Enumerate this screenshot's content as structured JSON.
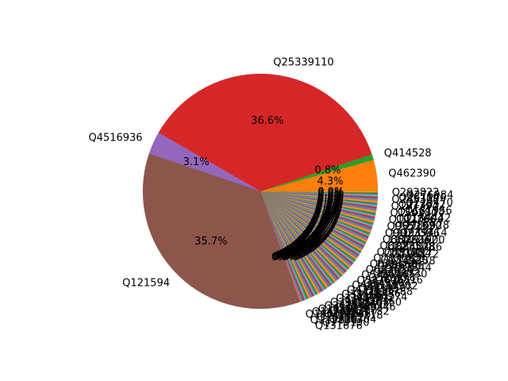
{
  "chart_data": {
    "type": "pie",
    "title": "",
    "major_slices": [
      {
        "label": "Q25339110",
        "value": 36.6,
        "pct_label": "36.6%",
        "color": "#d62728"
      },
      {
        "label": "Q4516936",
        "value": 3.1,
        "pct_label": "3.1%",
        "color": "#9467bd"
      },
      {
        "label": "Q121594",
        "value": 35.7,
        "pct_label": "35.7%",
        "color": "#8c564b"
      },
      {
        "label": "Q414528",
        "value": 0.8,
        "pct_label": "0.8%",
        "color": "#2ca02c"
      },
      {
        "label": "Q462390",
        "value": 4.3,
        "pct_label": "4.3%",
        "color": "#ff7f0e"
      }
    ],
    "minor_slices_total": 19.5,
    "minor_slice_colors": [
      "#1f77b4",
      "#ff7f0e",
      "#2ca02c",
      "#d62728",
      "#9467bd",
      "#8c564b",
      "#e377c2",
      "#7f7f7f",
      "#bcbd22",
      "#17becf"
    ],
    "minor_label_glyph": "Q",
    "minor_pct_glyph": "0"
  }
}
